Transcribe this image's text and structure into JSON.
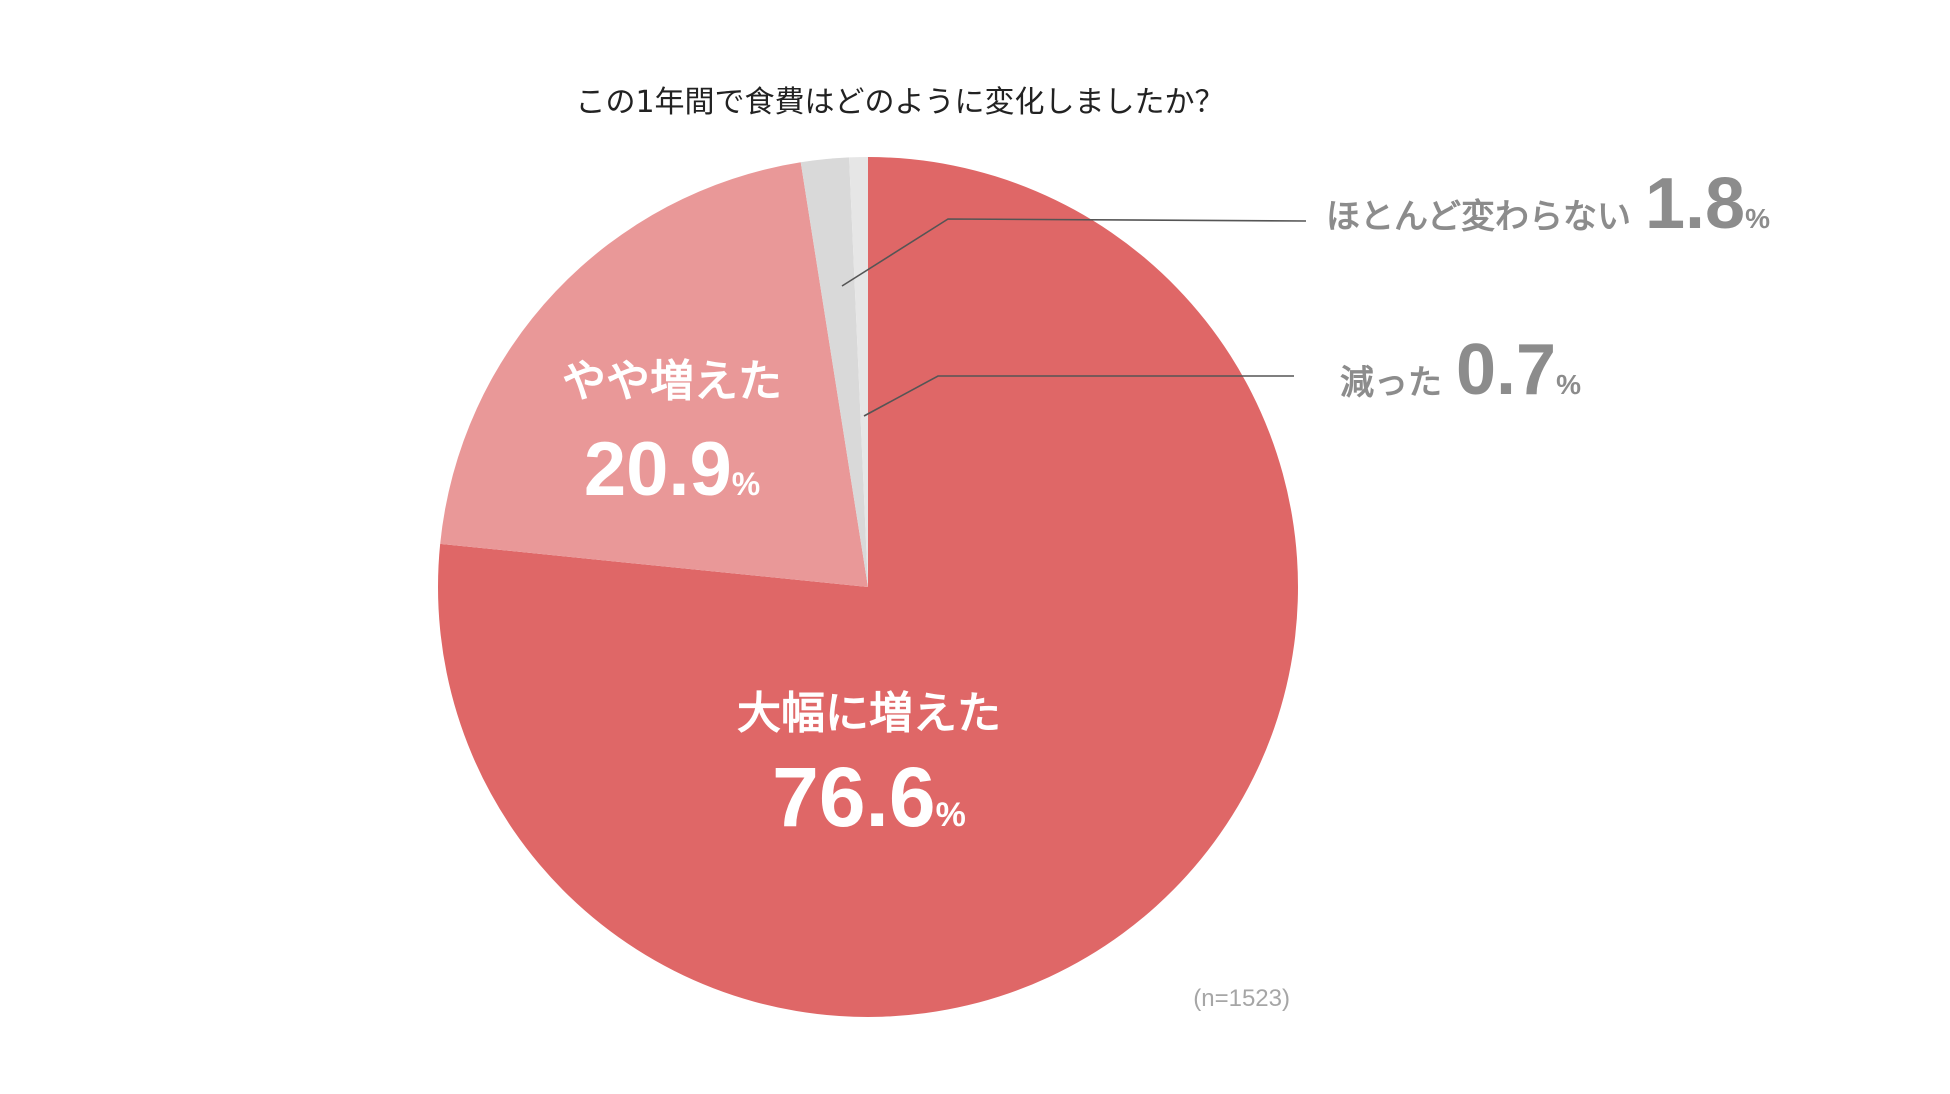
{
  "chart_data": {
    "type": "pie",
    "title": "この1年間で食費はどのように変化しましたか？",
    "note": "(n=1523)",
    "unit": "%",
    "slices": [
      {
        "label": "大幅に増えた",
        "value": 76.6,
        "value_text": "76.6",
        "color": "#df6767"
      },
      {
        "label": "やや増えた",
        "value": 20.9,
        "value_text": "20.9",
        "color": "#e99898"
      },
      {
        "label": "ほとんど変わらない",
        "value": 1.8,
        "value_text": "1.8",
        "color": "#d9d9d9"
      },
      {
        "label": "減った",
        "value": 0.7,
        "value_text": "0.7",
        "color": "#e6e6e6"
      }
    ]
  }
}
